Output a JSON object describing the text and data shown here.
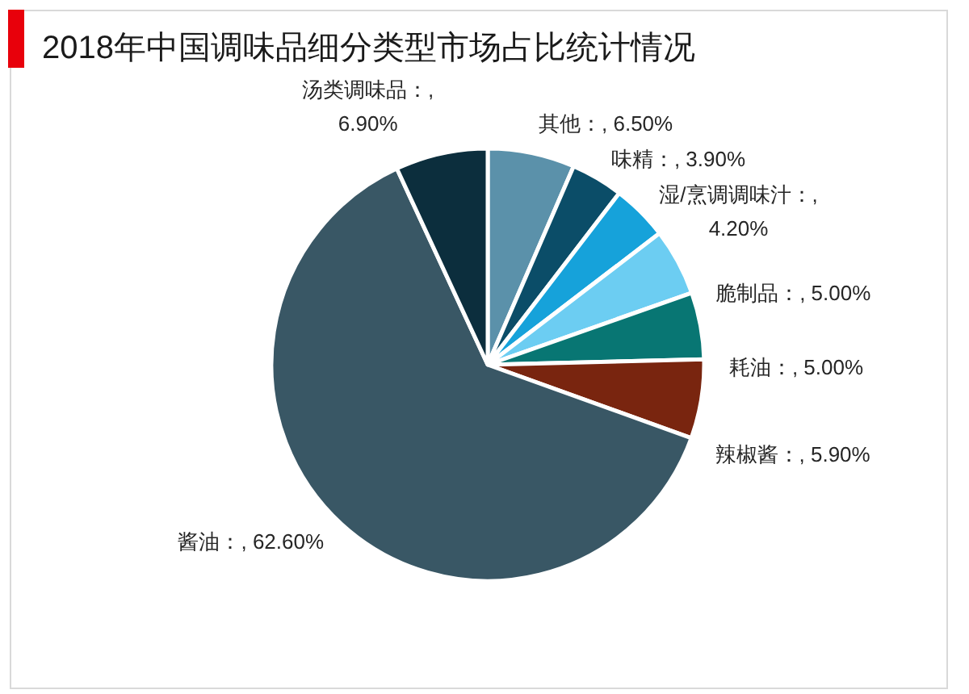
{
  "chart_data": {
    "type": "pie",
    "title": "2018年中国调味品细分类型市场占比统计情况",
    "categories": [
      "其他",
      "味精",
      "湿/烹调调味汁",
      "脆制品",
      "耗油",
      "辣椒酱",
      "酱油",
      "汤类调味品"
    ],
    "values": [
      6.5,
      3.9,
      4.2,
      5.0,
      5.0,
      5.9,
      62.6,
      6.9
    ],
    "value_labels": [
      "：, 6.50%",
      "：, 3.90%",
      "：, 4.20%",
      "：, 5.00%",
      "：, 5.00%",
      "：, 5.90%",
      "：, 62.60%",
      "：, 6.90%"
    ],
    "colors": [
      "#5b91aa",
      "#0b4d68",
      "#16a2da",
      "#6ccdf2",
      "#087673",
      "#79250f",
      "#395765",
      "#0c2e3d"
    ]
  }
}
